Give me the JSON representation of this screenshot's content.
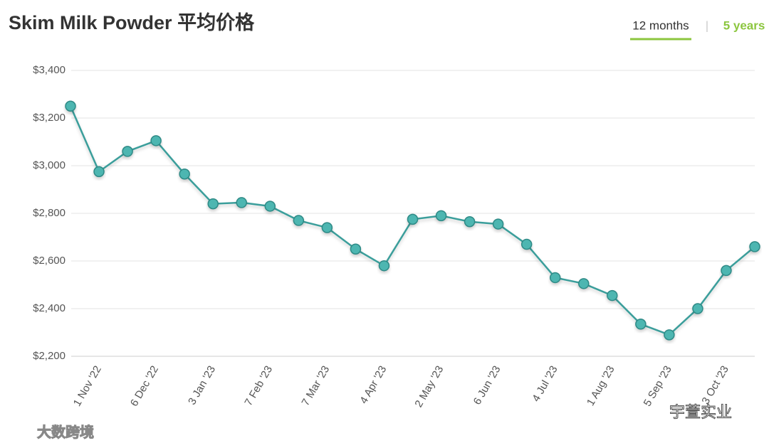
{
  "chart_data": {
    "type": "line",
    "title": "Skim Milk Powder 平均价格",
    "categories": [
      null,
      "1 Nov '22",
      null,
      "6 Dec '22",
      null,
      "3 Jan '23",
      null,
      "7 Feb '23",
      null,
      "7 Mar '23",
      null,
      "4 Apr '23",
      null,
      "2 May '23",
      null,
      "6 Jun '23",
      null,
      "4 Jul '23",
      null,
      "1 Aug '23",
      null,
      "5 Sep '23",
      null,
      "3 Oct '23",
      null
    ],
    "series": [
      {
        "name": "Skim Milk Powder",
        "color": "#3a9e9b",
        "values": [
          3250,
          2975,
          3060,
          3105,
          2965,
          2840,
          2845,
          2830,
          2770,
          2740,
          2650,
          2580,
          2775,
          2790,
          2765,
          2755,
          2670,
          2530,
          2505,
          2455,
          2335,
          2290,
          2400,
          2560,
          2660
        ]
      }
    ],
    "ylim": [
      2200,
      3400
    ],
    "yticks": [
      {
        "value": 2200,
        "label": "$2,200"
      },
      {
        "value": 2400,
        "label": "$2,400"
      },
      {
        "value": 2600,
        "label": "$2,600"
      },
      {
        "value": 2800,
        "label": "$2,800"
      },
      {
        "value": 3000,
        "label": "$3,000"
      },
      {
        "value": 3200,
        "label": "$3,200"
      },
      {
        "value": 3400,
        "label": "$3,400"
      }
    ],
    "grid": true
  },
  "tabs": [
    "12 months",
    "|",
    "5 years"
  ],
  "watermarks": [
    "大数跨境",
    "宇萱实业"
  ]
}
